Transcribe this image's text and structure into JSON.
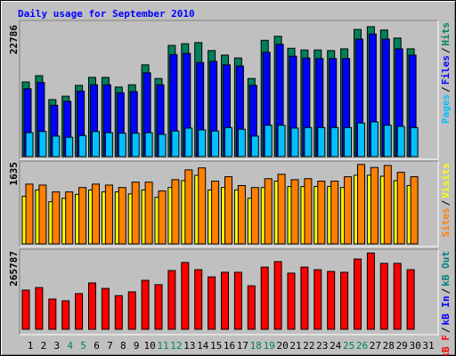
{
  "title": "Daily usage for September 2010",
  "legend_separator": "/",
  "chart_data": [
    {
      "type": "bar",
      "ylim": [
        0,
        22786
      ],
      "yticks": [
        22786
      ],
      "legend_reverse": true,
      "series": [
        {
          "name": "Hits",
          "color": "#00805c",
          "values": [
            13100,
            14200,
            10000,
            10600,
            12500,
            13900,
            13900,
            12200,
            12600,
            16100,
            13700,
            19500,
            19800,
            20000,
            18600,
            17800,
            17300,
            13700,
            20400,
            21100,
            19000,
            18700,
            18700,
            18600,
            18900,
            22300,
            22786,
            22200,
            20800,
            18900,
            null
          ]
        },
        {
          "name": "Files",
          "color": "#0000ff",
          "values": [
            11900,
            13000,
            9000,
            9700,
            11500,
            12600,
            12600,
            11200,
            11400,
            14700,
            12600,
            17900,
            18100,
            16500,
            16700,
            16100,
            15900,
            12500,
            18300,
            19700,
            17600,
            17300,
            17200,
            17200,
            17200,
            20600,
            21500,
            20600,
            18900,
            17800,
            null
          ]
        },
        {
          "name": "Pages",
          "color": "#00c0ff",
          "values": [
            4200,
            4400,
            3600,
            3400,
            3700,
            4400,
            4200,
            4100,
            4100,
            4200,
            3900,
            4500,
            5000,
            4700,
            4500,
            5100,
            4800,
            3600,
            5500,
            5500,
            5000,
            5100,
            5100,
            5100,
            5100,
            5900,
            6100,
            5500,
            5300,
            5100,
            null
          ]
        }
      ]
    },
    {
      "type": "bar",
      "ylim": [
        0,
        1635
      ],
      "yticks": [
        1635
      ],
      "legend_reverse": true,
      "series": [
        {
          "name": "Visits",
          "color": "#ffff00",
          "values": [
            970,
            1100,
            860,
            930,
            1010,
            1100,
            1060,
            1060,
            1020,
            1100,
            950,
            1150,
            1290,
            1400,
            1100,
            1150,
            1100,
            930,
            1150,
            1280,
            1170,
            1170,
            1170,
            1170,
            1150,
            1400,
            1400,
            1380,
            1290,
            1190,
            null
          ]
        },
        {
          "name": "Sites",
          "color": "#ff8000",
          "values": [
            1220,
            1200,
            1060,
            1060,
            1150,
            1220,
            1200,
            1150,
            1260,
            1260,
            1080,
            1310,
            1510,
            1550,
            1280,
            1370,
            1190,
            1150,
            1330,
            1420,
            1310,
            1330,
            1280,
            1280,
            1370,
            1620,
            1560,
            1600,
            1460,
            1370,
            null
          ]
        }
      ]
    },
    {
      "type": "bar",
      "ylim": [
        0,
        265787
      ],
      "yticks": [
        265787
      ],
      "legend_reverse": false,
      "categories": [
        "1",
        "2",
        "3",
        "4",
        "5",
        "6",
        "7",
        "8",
        "9",
        "10",
        "11",
        "12",
        "13",
        "14",
        "15",
        "16",
        "17",
        "18",
        "19",
        "20",
        "21",
        "22",
        "23",
        "24",
        "25",
        "26",
        "27",
        "28",
        "29",
        "30",
        "31"
      ],
      "category_colors": [
        "#000000",
        "#000000",
        "#000000",
        "#00805c",
        "#00805c",
        "#000000",
        "#000000",
        "#000000",
        "#000000",
        "#000000",
        "#00805c",
        "#00805c",
        "#000000",
        "#000000",
        "#000000",
        "#000000",
        "#000000",
        "#00805c",
        "#00805c",
        "#000000",
        "#000000",
        "#000000",
        "#000000",
        "#000000",
        "#00805c",
        "#00805c",
        "#000000",
        "#000000",
        "#000000",
        "#000000",
        "#000000"
      ],
      "series": [
        {
          "name": "kB F",
          "color": "#ff0000",
          "values": [
            136000,
            145000,
            105000,
            99000,
            124000,
            161000,
            142000,
            117000,
            130000,
            170000,
            155000,
            204000,
            232000,
            207000,
            182000,
            198000,
            198000,
            151000,
            216000,
            235000,
            195000,
            216000,
            207000,
            201000,
            198000,
            244000,
            265000,
            229000,
            229000,
            207000,
            null
          ]
        }
      ],
      "extra_legend": [
        {
          "name": "kB In",
          "color": "#0000ff"
        },
        {
          "name": "kB Out",
          "color": "#008080"
        }
      ]
    }
  ]
}
